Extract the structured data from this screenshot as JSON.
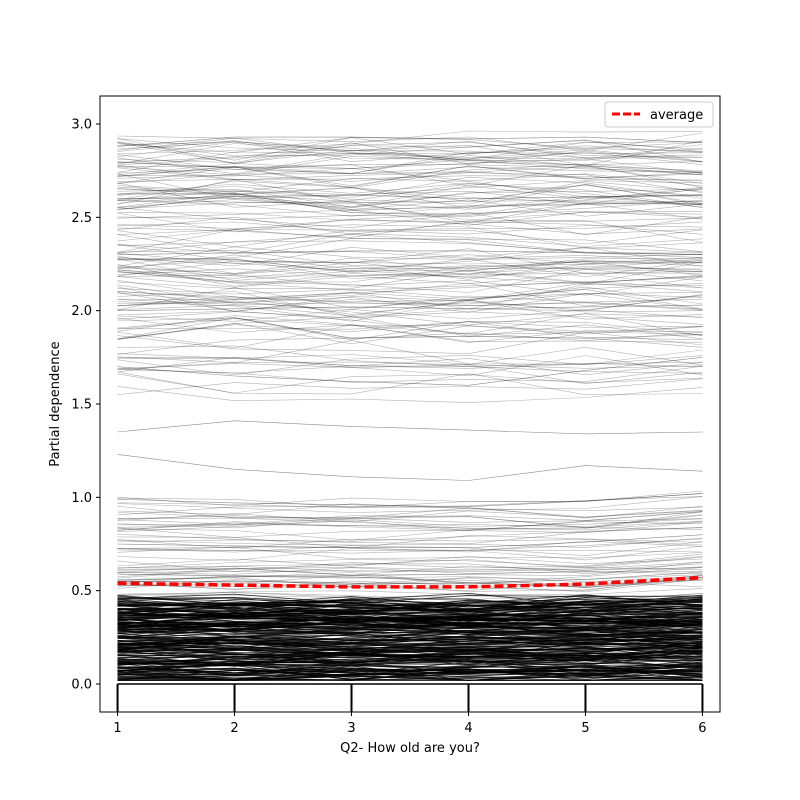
{
  "chart_data": {
    "type": "line",
    "title": "",
    "xlabel": "Q2- How old are you?",
    "ylabel": "Partial dependence",
    "x": [
      1,
      2,
      3,
      4,
      5,
      6
    ],
    "xticks": [
      "1",
      "2",
      "3",
      "4",
      "5",
      "6"
    ],
    "yticks": [
      "0.0",
      "0.5",
      "1.0",
      "1.5",
      "2.0",
      "2.5",
      "3.0"
    ],
    "xlim": [
      0.85,
      6.15
    ],
    "ylim": [
      -0.15,
      3.15
    ],
    "grid": false,
    "legend": {
      "position": "upper right",
      "entries": [
        "average"
      ]
    },
    "rug_x": [
      1,
      2,
      3,
      4,
      5,
      6
    ],
    "series": [
      {
        "name": "average",
        "values": [
          0.54,
          0.53,
          0.52,
          0.52,
          0.535,
          0.57
        ],
        "color": "#ff0000",
        "style": "dashed"
      }
    ],
    "ice_lines": {
      "color": "#000000",
      "description_values_sample": [
        [
          0.05,
          0.05,
          0.05,
          0.05,
          0.06,
          0.08
        ],
        [
          0.12,
          0.12,
          0.12,
          0.12,
          0.13,
          0.15
        ],
        [
          0.25,
          0.25,
          0.24,
          0.24,
          0.25,
          0.28
        ],
        [
          0.4,
          0.4,
          0.39,
          0.39,
          0.41,
          0.45
        ],
        [
          0.55,
          0.55,
          0.54,
          0.54,
          0.56,
          0.6
        ],
        [
          0.75,
          0.74,
          0.73,
          0.73,
          0.76,
          0.8
        ],
        [
          0.99,
          0.97,
          0.96,
          0.95,
          0.98,
          1.02
        ],
        [
          1.23,
          1.15,
          1.11,
          1.09,
          1.17,
          1.14
        ],
        [
          1.35,
          1.41,
          1.38,
          1.36,
          1.34,
          1.35
        ],
        [
          1.7,
          1.65,
          1.62,
          1.6,
          1.68,
          1.75
        ],
        [
          2.0,
          2.01,
          2.02,
          2.01,
          2.02,
          2.03
        ],
        [
          2.3,
          2.31,
          2.32,
          2.32,
          2.31,
          2.3
        ],
        [
          2.6,
          2.61,
          2.62,
          2.6,
          2.61,
          2.62
        ],
        [
          2.88,
          2.93,
          2.93,
          2.92,
          2.93,
          2.9
        ]
      ]
    }
  }
}
